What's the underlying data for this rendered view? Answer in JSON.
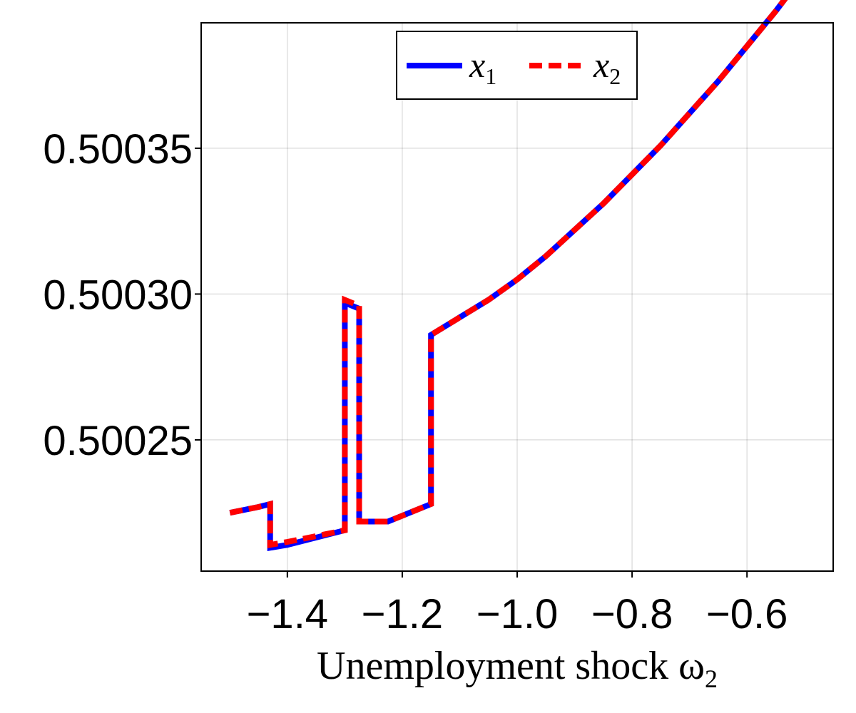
{
  "chart_data": {
    "type": "line",
    "title": "",
    "xlabel": "Unemployment shock ω",
    "xlabel_subscript": "2",
    "ylabel": "",
    "xlim": [
      -1.55,
      -0.45
    ],
    "ylim": [
      0.500205,
      0.500393
    ],
    "x_ticks": [
      -1.4,
      -1.2,
      -1.0,
      -0.8,
      -0.6
    ],
    "x_tick_labels": [
      "−1.4",
      "−1.2",
      "−1.0",
      "−0.8",
      "−0.6"
    ],
    "y_ticks": [
      0.50025,
      0.5003,
      0.50035
    ],
    "y_tick_labels": [
      "0.50025",
      "0.50030",
      "0.50035"
    ],
    "grid": true,
    "legend": {
      "placement": "top-center",
      "orientation": "horizontal"
    },
    "series": [
      {
        "name": "x",
        "name_subscript": "1",
        "color": "#0000ff",
        "dash": "solid",
        "x": [
          -1.5,
          -1.45,
          -1.43,
          -1.43,
          -1.4,
          -1.3,
          -1.3,
          -1.275,
          -1.275,
          -1.225,
          -1.15,
          -1.15,
          -1.1,
          -1.05,
          -1.0,
          -0.95,
          -0.9,
          -0.85,
          -0.8,
          -0.75,
          -0.7,
          -0.65,
          -0.6,
          -0.55,
          -0.5
        ],
        "y": [
          0.500225,
          0.500227,
          0.500228,
          0.500213,
          0.500214,
          0.500219,
          0.500297,
          0.500295,
          0.500222,
          0.500222,
          0.500228,
          0.500286,
          0.500292,
          0.500298,
          0.500305,
          0.500313,
          0.500322,
          0.500331,
          0.500341,
          0.500351,
          0.500362,
          0.500373,
          0.500385,
          0.500397,
          0.50041
        ]
      },
      {
        "name": "x",
        "name_subscript": "2",
        "color": "#ff0000",
        "dash": "dashed",
        "x": [
          -1.5,
          -1.45,
          -1.43,
          -1.43,
          -1.4,
          -1.3,
          -1.3,
          -1.275,
          -1.275,
          -1.225,
          -1.15,
          -1.15,
          -1.1,
          -1.05,
          -1.0,
          -0.95,
          -0.9,
          -0.85,
          -0.8,
          -0.75,
          -0.7,
          -0.65,
          -0.6,
          -0.55,
          -0.5
        ],
        "y": [
          0.500225,
          0.500227,
          0.500228,
          0.500214,
          0.500215,
          0.500219,
          0.500298,
          0.500296,
          0.500222,
          0.500222,
          0.500228,
          0.500286,
          0.500292,
          0.500298,
          0.500305,
          0.500313,
          0.500322,
          0.500331,
          0.500341,
          0.500351,
          0.500362,
          0.500373,
          0.500385,
          0.500397,
          0.50041
        ]
      }
    ]
  }
}
